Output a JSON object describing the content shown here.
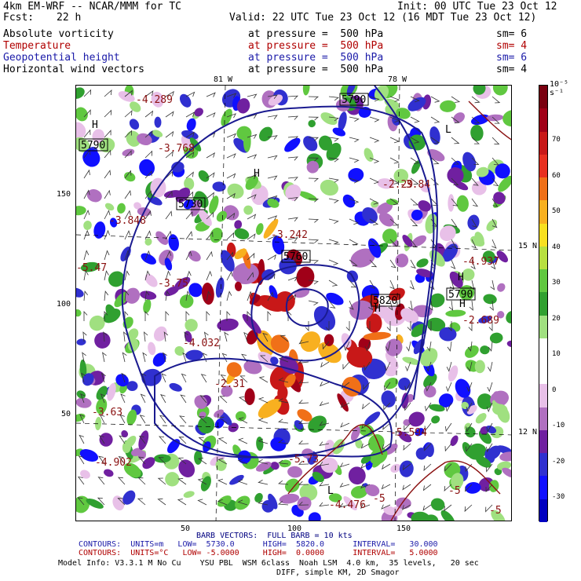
{
  "header": {
    "model": "4km EM-WRF -- NCAR/MMM for TC",
    "init": "Init: 00 UTC Tue 23 Oct 12",
    "fcst_label": "Fcst:",
    "fcst_value": "22 h",
    "valid": "Valid: 22 UTC Tue 23 Oct 12 (16 MDT Tue 23 Oct 12)"
  },
  "fields": [
    {
      "name": "Absolute vorticity",
      "pressure": "at pressure =  500 hPa",
      "sm": "sm= 6",
      "color": "#000000"
    },
    {
      "name": "Temperature",
      "pressure": "at pressure =  500 hPa",
      "sm": "sm= 4",
      "color": "#b00000"
    },
    {
      "name": "Geopotential height",
      "pressure": "at pressure =  500 hPa",
      "sm": "sm= 6",
      "color": "#1a1aa8"
    },
    {
      "name": "Horizontal wind vectors",
      "pressure": "at pressure =  500 hPa",
      "sm": "sm= 4",
      "color": "#000000"
    }
  ],
  "map": {
    "lon_labels": [
      "81 W",
      "78 W"
    ],
    "lat_labels": [
      "15 N",
      "12 N"
    ],
    "x_ticks": [
      "50",
      "100",
      "150"
    ],
    "y_ticks": [
      "150",
      "100",
      "50"
    ],
    "height_labels": [
      "5790",
      "5730",
      "5760",
      "5820",
      "5790",
      "5790"
    ],
    "temp_labels": [
      "-4.289",
      "-3.768",
      "-3.848",
      "-3.242",
      "-3.75",
      "-4.032",
      "-2.31",
      "-4.937",
      "-2.689",
      "-5.594",
      "-5.73",
      "-4.476",
      "-5",
      "-5",
      "-5",
      "-4.902",
      "-3.84",
      "-2.29",
      "-5.47",
      "-3.63"
    ],
    "high_low_marks": [
      "H",
      "H",
      "L",
      "H",
      "H",
      "H",
      "L"
    ]
  },
  "colorbar": {
    "units": "10⁻⁵ s⁻¹",
    "labels": [
      "70",
      "60",
      "50",
      "40",
      "30",
      "20",
      "10",
      "0",
      "-10",
      "-20",
      "-30"
    ],
    "colors": [
      "#7a0010",
      "#a00018",
      "#c81818",
      "#e83020",
      "#f07018",
      "#f8b020",
      "#f8e020",
      "#b8e040",
      "#60c840",
      "#30a030",
      "#a0e080",
      "#ffffff",
      "#ffffff",
      "#e8c0e8",
      "#b070c0",
      "#7020a0",
      "#3030d0",
      "#1010ff",
      "#0000c0"
    ]
  },
  "footer": {
    "barb": "BARB VECTORS:  FULL BARB = 10 kts",
    "contours1": "CONTOURS:  UNITS=m   LOW=  5730.0      HIGH=  5820.0      INTERVAL=   30.000",
    "contours2": "CONTOURS:  UNITS=°C   LOW= -5.0000     HIGH=  0.0000      INTERVAL=   5.0000",
    "model_info": "Model Info: V3.3.1 M No Cu    YSU PBL  WSM 6class  Noah LSM  4.0 km,  35 levels,   20 sec",
    "model_info2": "DIFF, simple KM, 2D Smagor"
  }
}
